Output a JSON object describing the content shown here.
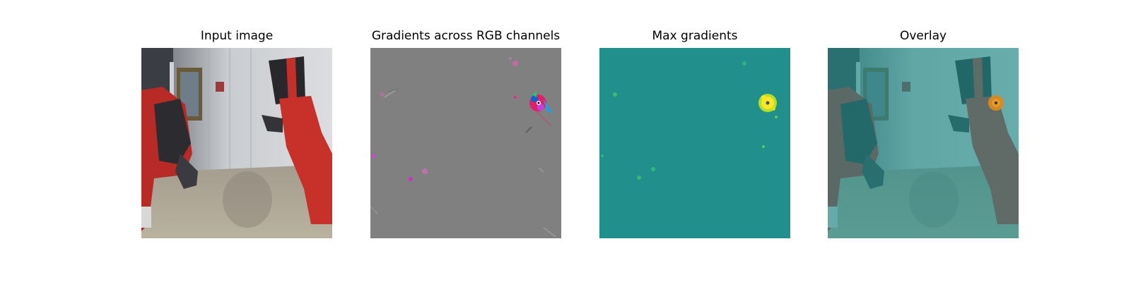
{
  "panels": [
    {
      "title": "Input image"
    },
    {
      "title": "Gradients across RGB channels"
    },
    {
      "title": "Max gradients"
    },
    {
      "title": "Overlay"
    }
  ],
  "colors": {
    "gradient_background": "#808080",
    "max_gradient_background": "#21908d",
    "max_gradient_peak": "#fde725",
    "overlay_tint": "#2a8a88",
    "robot_red": "#c8302a"
  }
}
